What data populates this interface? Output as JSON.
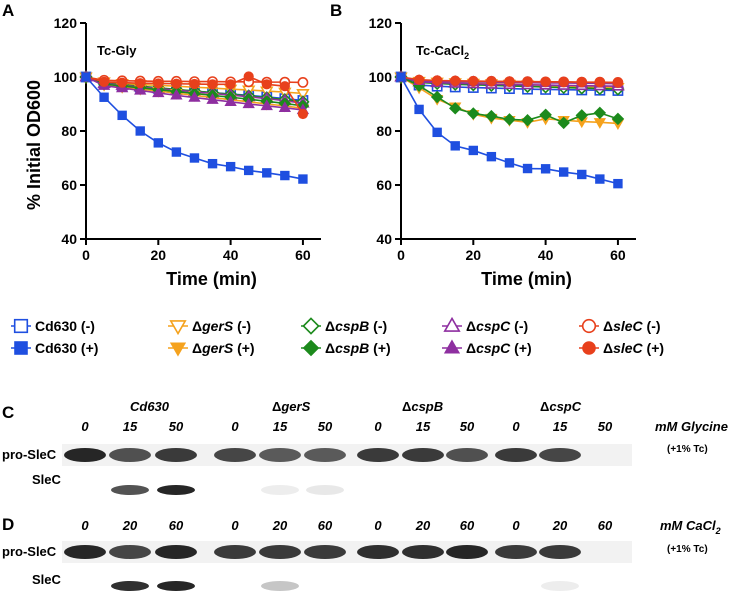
{
  "panels": {
    "A": {
      "letter": "A",
      "label": "Tc-Gly"
    },
    "B": {
      "letter": "B",
      "label_main": "Tc-CaCl",
      "label_sub": "2"
    },
    "C": {
      "letter": "C"
    },
    "D": {
      "letter": "D"
    }
  },
  "axes": {
    "ylabel": "% Initial OD600",
    "xlabel": "Time (min)",
    "yticks": [
      "40",
      "60",
      "80",
      "100",
      "120"
    ],
    "xticks": [
      "0",
      "20",
      "40",
      "60"
    ]
  },
  "legend": [
    {
      "prefix": "",
      "name": "Cd630",
      "suffix": " (-)",
      "color": "#1f4fe0",
      "shape": "square",
      "fill": false
    },
    {
      "prefix": "",
      "name": "Cd630",
      "suffix": " (+)",
      "color": "#1f4fe0",
      "shape": "square",
      "fill": true
    },
    {
      "prefix": "Δ",
      "name": "gerS",
      "suffix": " (-)",
      "color": "#f5a21d",
      "shape": "tri-down",
      "fill": false
    },
    {
      "prefix": "Δ",
      "name": "gerS",
      "suffix": " (+)",
      "color": "#f5a21d",
      "shape": "tri-down",
      "fill": true
    },
    {
      "prefix": "Δ",
      "name": "cspB",
      "suffix": " (-)",
      "color": "#1c8a1c",
      "shape": "diamond",
      "fill": false
    },
    {
      "prefix": "Δ",
      "name": "cspB",
      "suffix": " (+)",
      "color": "#1c8a1c",
      "shape": "diamond",
      "fill": true
    },
    {
      "prefix": "Δ",
      "name": "cspC",
      "suffix": " (-)",
      "color": "#8e2fa0",
      "shape": "tri-up",
      "fill": false
    },
    {
      "prefix": "Δ",
      "name": "cspC",
      "suffix": " (+)",
      "color": "#8e2fa0",
      "shape": "tri-up",
      "fill": true
    },
    {
      "prefix": "Δ",
      "name": "sleC",
      "suffix": " (-)",
      "color": "#e8401c",
      "shape": "circle",
      "fill": false
    },
    {
      "prefix": "Δ",
      "name": "sleC",
      "suffix": " (+)",
      "color": "#e8401c",
      "shape": "circle",
      "fill": true
    }
  ],
  "chart_data": [
    {
      "type": "line",
      "title": "Tc-Gly",
      "xlabel": "Time (min)",
      "ylabel": "% Initial OD600",
      "xlim": [
        0,
        65
      ],
      "ylim": [
        40,
        120
      ],
      "x": [
        0,
        5,
        10,
        15,
        20,
        25,
        30,
        35,
        40,
        45,
        50,
        55,
        60
      ],
      "series": [
        {
          "name": "Cd630 (-)",
          "values": [
            100,
            97.5,
            96.8,
            96.3,
            95.8,
            95.3,
            94.8,
            94.2,
            93.7,
            93.2,
            92.6,
            92.0,
            91.3
          ]
        },
        {
          "name": "Cd630 (+)",
          "values": [
            100,
            92.5,
            85.8,
            80.0,
            75.6,
            72.2,
            70.0,
            67.9,
            66.8,
            65.4,
            64.5,
            63.5,
            62.2
          ]
        },
        {
          "name": "ΔgerS (-)",
          "values": [
            100,
            98.2,
            97.6,
            97.2,
            96.9,
            96.6,
            96.2,
            95.9,
            95.5,
            95.2,
            94.8,
            94.4,
            93.9
          ]
        },
        {
          "name": "ΔgerS (+)",
          "values": [
            100,
            97.0,
            96.2,
            95.5,
            94.8,
            94.0,
            93.2,
            92.4,
            91.6,
            90.8,
            90.0,
            89.3,
            88.4
          ]
        },
        {
          "name": "ΔcspB (-)",
          "values": [
            100,
            97.8,
            97.1,
            96.6,
            96.0,
            95.4,
            94.8,
            94.2,
            93.6,
            93.0,
            92.3,
            91.6,
            90.8
          ]
        },
        {
          "name": "ΔcspB (+)",
          "values": [
            100,
            97.4,
            96.6,
            96.0,
            95.3,
            94.6,
            93.9,
            93.2,
            92.5,
            91.8,
            91.0,
            90.2,
            89.3
          ]
        },
        {
          "name": "ΔcspC (-)",
          "values": [
            100,
            97.6,
            96.9,
            96.3,
            95.7,
            95.1,
            94.5,
            93.9,
            93.3,
            92.7,
            92.0,
            91.2,
            90.3
          ]
        },
        {
          "name": "ΔcspC (+)",
          "values": [
            100,
            96.8,
            95.9,
            95.0,
            94.1,
            93.2,
            92.4,
            91.6,
            90.8,
            90.0,
            89.3,
            88.6,
            87.8
          ]
        },
        {
          "name": "ΔsleC (-)",
          "values": [
            100,
            98.8,
            98.6,
            98.5,
            98.4,
            98.4,
            98.3,
            98.3,
            98.2,
            98.2,
            98.1,
            98.1,
            98.0
          ]
        },
        {
          "name": "ΔsleC (+)",
          "values": [
            100,
            98.2,
            97.9,
            97.7,
            97.6,
            97.5,
            97.4,
            97.3,
            97.3,
            100.2,
            97.3,
            96.6,
            86.3
          ]
        }
      ]
    },
    {
      "type": "line",
      "title": "Tc-CaCl2",
      "xlabel": "Time (min)",
      "ylabel": "% Initial OD600",
      "xlim": [
        0,
        65
      ],
      "ylim": [
        40,
        120
      ],
      "x": [
        0,
        5,
        10,
        15,
        20,
        25,
        30,
        35,
        40,
        45,
        50,
        55,
        60
      ],
      "series": [
        {
          "name": "Cd630 (-)",
          "values": [
            100,
            97.0,
            96.6,
            96.3,
            96.1,
            95.9,
            95.7,
            95.5,
            95.4,
            95.3,
            95.2,
            95.1,
            95.0
          ]
        },
        {
          "name": "Cd630 (+)",
          "values": [
            100,
            88.0,
            79.5,
            74.5,
            72.8,
            70.5,
            68.2,
            66.1,
            66.0,
            64.8,
            63.9,
            62.2,
            60.5
          ]
        },
        {
          "name": "ΔgerS (-)",
          "values": [
            100,
            98.4,
            98.1,
            97.9,
            97.7,
            97.5,
            97.3,
            97.1,
            96.9,
            96.7,
            96.5,
            96.3,
            96.1
          ]
        },
        {
          "name": "ΔgerS (+)",
          "values": [
            100,
            96.0,
            91.8,
            89.0,
            86.2,
            84.8,
            84.0,
            83.2,
            84.5,
            84.0,
            83.5,
            83.2,
            82.8
          ]
        },
        {
          "name": "ΔcspB (-)",
          "values": [
            100,
            98.0,
            97.6,
            97.3,
            97.1,
            96.9,
            96.7,
            96.5,
            96.3,
            96.1,
            95.9,
            95.7,
            95.5
          ]
        },
        {
          "name": "ΔcspB (+)",
          "values": [
            100,
            96.8,
            92.6,
            88.4,
            86.5,
            85.5,
            84.3,
            84.0,
            86.0,
            83.0,
            85.8,
            86.7,
            84.5
          ]
        },
        {
          "name": "ΔcspC (-)",
          "values": [
            100,
            98.2,
            97.9,
            97.7,
            97.5,
            97.3,
            97.2,
            97.1,
            97.0,
            96.9,
            96.8,
            96.7,
            96.6
          ]
        },
        {
          "name": "ΔcspC (+)",
          "values": [
            100,
            98.6,
            98.4,
            98.3,
            98.2,
            98.1,
            98.0,
            97.9,
            97.8,
            97.8,
            97.7,
            97.6,
            97.5
          ]
        },
        {
          "name": "ΔsleC (-)",
          "values": [
            100,
            98.8,
            98.6,
            98.5,
            98.4,
            98.4,
            98.3,
            98.3,
            98.2,
            98.2,
            98.1,
            98.1,
            98.0
          ]
        },
        {
          "name": "ΔsleC (+)",
          "values": [
            100,
            99.0,
            98.7,
            98.6,
            98.5,
            98.4,
            98.3,
            98.2,
            98.2,
            98.1,
            98.1,
            98.0,
            97.9
          ]
        }
      ]
    }
  ],
  "blotC": {
    "strains": [
      {
        "prefix": "",
        "name": "Cd630"
      },
      {
        "prefix": "Δ",
        "name": "gerS"
      },
      {
        "prefix": "Δ",
        "name": "cspB"
      },
      {
        "prefix": "Δ",
        "name": "cspC"
      }
    ],
    "concentrations": [
      "0",
      "15",
      "50",
      "0",
      "15",
      "50",
      "0",
      "15",
      "50",
      "0",
      "15",
      "50"
    ],
    "unit": "mM Glycine",
    "note": "(+1% Tc)",
    "row1": "pro-SleC",
    "row2": "SleC"
  },
  "blotD": {
    "concentrations": [
      "0",
      "20",
      "60",
      "0",
      "20",
      "60",
      "0",
      "20",
      "60",
      "0",
      "20",
      "60"
    ],
    "unit_main": "mM CaCl",
    "unit_sub": "2",
    "note": "(+1% Tc)",
    "row1": "pro-SleC",
    "row2": "SleC"
  }
}
